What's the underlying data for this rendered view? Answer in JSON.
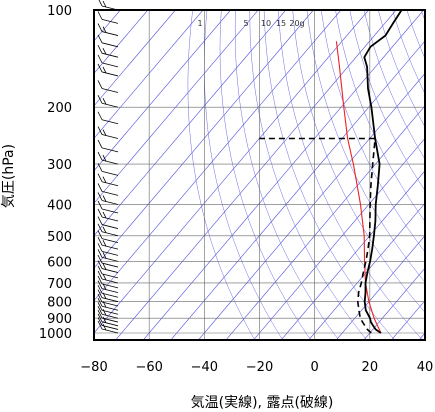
{
  "chart_data": {
    "type": "line",
    "chart_kind": "skew-T log-p sounding",
    "xlabel": "気温(実線), 露点(破線)",
    "ylabel": "気圧(hPa)",
    "x_ticks": [
      -80,
      -60,
      -40,
      -20,
      0,
      20,
      40
    ],
    "y_ticks": [
      100,
      200,
      300,
      400,
      500,
      600,
      700,
      800,
      900,
      1000
    ],
    "x_tick_labels": [
      "−80",
      "−60",
      "−40",
      "−20",
      "0",
      "20",
      "40"
    ],
    "y_tick_labels": [
      "100",
      "200",
      "300",
      "400",
      "500",
      "600",
      "700",
      "800",
      "900",
      "1000"
    ],
    "xlim": [
      -80,
      40
    ],
    "ylim_hpa": [
      1050,
      100
    ],
    "y_scale": "log",
    "grid": true,
    "mixing_ratio_labels": [
      "1",
      "5",
      "10",
      "15",
      "20g"
    ],
    "colors": {
      "isotherm": "#5050e0",
      "dry_adiabat": "#6a6ae8",
      "temperature": "#000000",
      "dewpoint": "#000000",
      "reference_curve": "#ee2222",
      "wind_barb": "#000000"
    },
    "series": [
      {
        "style": "solid",
        "points": [
          [
            1000,
            24
          ],
          [
            975,
            21
          ],
          [
            950,
            19
          ],
          [
            925,
            17
          ],
          [
            900,
            15.5
          ],
          [
            850,
            11.5
          ],
          [
            800,
            8.5
          ],
          [
            750,
            6
          ],
          [
            700,
            3
          ],
          [
            650,
            0.5
          ],
          [
            600,
            -2
          ],
          [
            550,
            -5
          ],
          [
            500,
            -8.5
          ],
          [
            450,
            -12.5
          ],
          [
            400,
            -17.5
          ],
          [
            350,
            -22.5
          ],
          [
            300,
            -28.5
          ],
          [
            250,
            -38
          ],
          [
            200,
            -49
          ],
          [
            175,
            -56
          ],
          [
            150,
            -63
          ],
          [
            140,
            -67
          ],
          [
            130,
            -68
          ],
          [
            120,
            -66
          ],
          [
            110,
            -67
          ],
          [
            100,
            -68
          ]
        ]
      },
      {
        "style": "dashed",
        "points": [
          [
            1000,
            20.5
          ],
          [
            975,
            18
          ],
          [
            950,
            16
          ],
          [
            925,
            14
          ],
          [
            900,
            12
          ],
          [
            850,
            9
          ],
          [
            800,
            6
          ],
          [
            750,
            3.5
          ],
          [
            700,
            1.5
          ],
          [
            650,
            -1
          ],
          [
            600,
            -3.5
          ],
          [
            550,
            -6.5
          ],
          [
            500,
            -10
          ],
          [
            450,
            -14.5
          ],
          [
            400,
            -19.5
          ],
          [
            350,
            -25
          ],
          [
            300,
            -31
          ],
          [
            250,
            -38
          ],
          [
            250,
            -80
          ]
        ]
      },
      {
        "style": "reference",
        "points": [
          [
            1000,
            24
          ],
          [
            900,
            17
          ],
          [
            800,
            10
          ],
          [
            700,
            3
          ],
          [
            600,
            -4
          ],
          [
            500,
            -12
          ],
          [
            400,
            -23
          ],
          [
            300,
            -38
          ],
          [
            250,
            -48
          ],
          [
            200,
            -59
          ],
          [
            150,
            -73
          ],
          [
            125,
            -82
          ]
        ]
      }
    ],
    "wind_barbs_hpa": [
      1000,
      975,
      950,
      925,
      900,
      875,
      850,
      825,
      800,
      775,
      750,
      725,
      700,
      675,
      650,
      625,
      600,
      575,
      550,
      525,
      500,
      475,
      450,
      425,
      400,
      375,
      350,
      325,
      300,
      275,
      250,
      225,
      200,
      180,
      160,
      150,
      140,
      130,
      120,
      110,
      100
    ]
  }
}
